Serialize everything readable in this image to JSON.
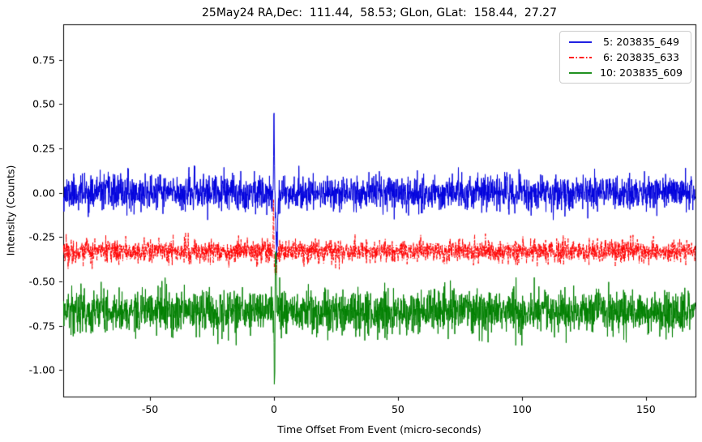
{
  "figure": {
    "background": "#ffffff",
    "frame_color": "#000000"
  },
  "chart_data": {
    "type": "line",
    "title": "25May24 RA,Dec:  111.44,  58.53; GLon, GLat:  158.44,  27.27",
    "xlabel": "Time Offset From Event (micro-seconds)",
    "ylabel": "Intensity (Counts)",
    "xlim": [
      -85,
      170
    ],
    "ylim": [
      -1.15,
      0.95
    ],
    "x_ticks": [
      -50,
      0,
      50,
      100,
      150
    ],
    "y_ticks": [
      -1.0,
      -0.75,
      -0.5,
      -0.25,
      0.0,
      0.25,
      0.5,
      0.75
    ],
    "grid": false,
    "legend_position": "upper right",
    "series": [
      {
        "name": " 5: 203835_649",
        "color": "#0000dd",
        "linestyle": "solid",
        "baseline": 0.0,
        "noise_sigma": 0.048,
        "seed": 11,
        "spikes": [
          {
            "t": 0.0,
            "amp": 0.45,
            "width": 0.15
          },
          {
            "t": 1.1,
            "amp": -0.3,
            "width": 0.35
          }
        ]
      },
      {
        "name": " 6: 203835_633",
        "color": "#ff0000",
        "linestyle": "dashdot",
        "baseline": -0.33,
        "noise_sigma": 0.032,
        "seed": 22,
        "spikes": [
          {
            "t": -0.2,
            "amp": 0.32,
            "width": 0.12
          },
          {
            "t": 0.5,
            "amp": -0.13,
            "width": 0.45
          }
        ]
      },
      {
        "name": "10: 203835_609",
        "color": "#008000",
        "linestyle": "solid",
        "baseline": -0.67,
        "noise_sigma": 0.06,
        "seed": 33,
        "spikes": [
          {
            "t": 0.2,
            "amp": -0.41,
            "width": 0.18
          },
          {
            "t": 0.7,
            "amp": 0.37,
            "width": 0.2
          }
        ]
      }
    ]
  }
}
